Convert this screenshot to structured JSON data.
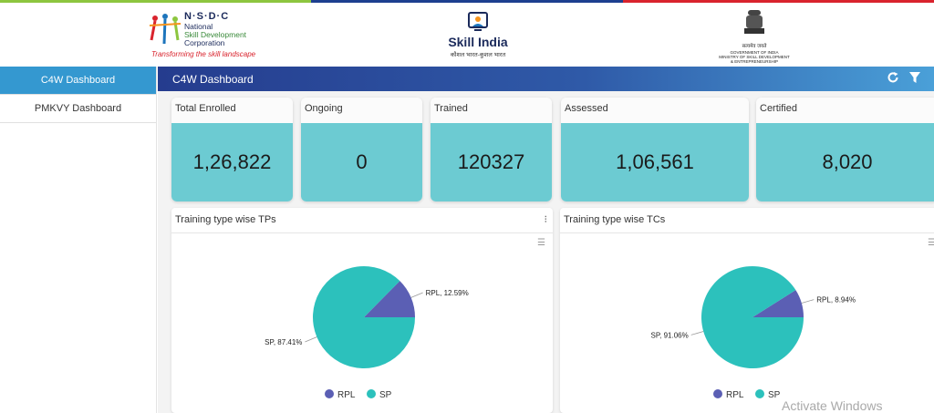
{
  "header": {
    "nsdc": {
      "letters": "N·S·D·C",
      "line1": "National",
      "line2": "Skill Development",
      "line3": "Corporation",
      "tagline": "Transforming the skill landscape"
    },
    "skill_india": {
      "title": "Skill India",
      "subtitle": "कौशल भारत-कुशल भारत"
    },
    "gov": {
      "line1": "सत्यमेव जयते",
      "line2": "GOVERNMENT OF INDIA",
      "line3": "MINISTRY OF SKILL DEVELOPMENT",
      "line4": "& ENTREPRENEURSHIP"
    }
  },
  "sidebar": {
    "items": [
      {
        "label": "C4W Dashboard"
      },
      {
        "label": "PMKVY Dashboard"
      }
    ]
  },
  "dashboard": {
    "title": "C4W Dashboard",
    "refresh_icon": "refresh-icon",
    "filter_icon": "filter-icon"
  },
  "cards": [
    {
      "label": "Total Enrolled",
      "value": "1,26,822"
    },
    {
      "label": "Ongoing",
      "value": "0"
    },
    {
      "label": "Trained",
      "value": "120327"
    },
    {
      "label": "Assessed",
      "value": "1,06,561"
    },
    {
      "label": "Certified",
      "value": "8,020"
    }
  ],
  "colors": {
    "rpl": "#5b5fb4",
    "sp": "#2cc1bc",
    "card_value_bg": "#6ccbd2",
    "active_tab": "#3498d0"
  },
  "chart_data": [
    {
      "type": "pie",
      "title": "Training type wise TPs",
      "categories": [
        "RPL",
        "SP"
      ],
      "values": [
        12.59,
        87.41
      ],
      "data_labels": [
        "RPL, 12.59%",
        "SP, 87.41%"
      ],
      "legend": [
        "RPL",
        "SP"
      ]
    },
    {
      "type": "pie",
      "title": "Training type wise TCs",
      "categories": [
        "RPL",
        "SP"
      ],
      "values": [
        8.94,
        91.06
      ],
      "data_labels": [
        "RPL, 8.94%",
        "SP, 91.06%"
      ],
      "legend": [
        "RPL",
        "SP"
      ]
    }
  ],
  "watermark": "Activate Windows"
}
